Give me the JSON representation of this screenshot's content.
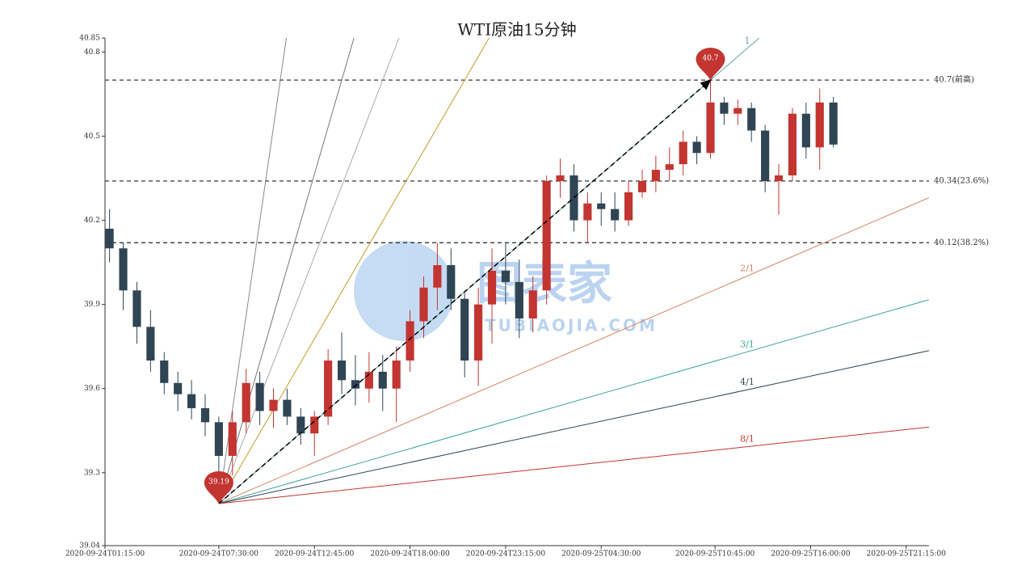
{
  "chart_data": {
    "type": "candlestick",
    "title": "WTI原油15分钟",
    "watermark": {
      "text": "图表家",
      "subtext": "TUBIAOJIA.COM"
    },
    "up_color": "#c23531",
    "down_color": "#2f4554",
    "x": [
      "2020-09-24T01:30:00",
      "2020-09-24T02:15:00",
      "2020-09-24T03:00:00",
      "2020-09-24T03:45:00",
      "2020-09-24T04:30:00",
      "2020-09-24T05:15:00",
      "2020-09-24T06:00:00",
      "2020-09-24T06:45:00",
      "2020-09-24T07:30:00",
      "2020-09-24T08:15:00",
      "2020-09-24T09:00:00",
      "2020-09-24T09:45:00",
      "2020-09-24T10:30:00",
      "2020-09-24T11:15:00",
      "2020-09-24T12:00:00",
      "2020-09-24T12:45:00",
      "2020-09-24T13:30:00",
      "2020-09-24T14:15:00",
      "2020-09-24T15:00:00",
      "2020-09-24T15:45:00",
      "2020-09-24T16:30:00",
      "2020-09-24T17:15:00",
      "2020-09-24T18:00:00",
      "2020-09-24T18:45:00",
      "2020-09-24T19:30:00",
      "2020-09-24T20:15:00",
      "2020-09-24T21:00:00",
      "2020-09-24T21:45:00",
      "2020-09-24T22:30:00",
      "2020-09-24T23:15:00",
      "2020-09-25T00:00:00",
      "2020-09-25T00:45:00",
      "2020-09-25T01:30:00",
      "2020-09-25T02:15:00",
      "2020-09-25T03:00:00",
      "2020-09-25T03:45:00",
      "2020-09-25T04:30:00",
      "2020-09-25T05:15:00",
      "2020-09-25T06:00:00",
      "2020-09-25T06:45:00",
      "2020-09-25T07:30:00",
      "2020-09-25T08:15:00",
      "2020-09-25T09:00:00",
      "2020-09-25T09:45:00",
      "2020-09-25T10:30:00",
      "2020-09-25T11:15:00",
      "2020-09-25T12:00:00",
      "2020-09-25T12:45:00",
      "2020-09-25T13:30:00",
      "2020-09-25T14:15:00",
      "2020-09-25T15:00:00",
      "2020-09-25T15:45:00",
      "2020-09-25T16:30:00",
      "2020-09-25T17:15:00"
    ],
    "open": [
      40.17,
      40.1,
      39.95,
      39.82,
      39.7,
      39.62,
      39.58,
      39.53,
      39.48,
      39.36,
      39.48,
      39.62,
      39.52,
      39.56,
      39.5,
      39.44,
      39.5,
      39.7,
      39.63,
      39.6,
      39.66,
      39.6,
      39.7,
      39.84,
      39.96,
      40.04,
      39.92,
      39.7,
      39.9,
      40.02,
      39.98,
      39.85,
      39.95,
      40.34,
      40.36,
      40.2,
      40.26,
      40.24,
      40.2,
      40.3,
      40.34,
      40.38,
      40.4,
      40.48,
      40.44,
      40.62,
      40.58,
      40.6,
      40.52,
      40.34,
      40.36,
      40.58,
      40.46,
      40.62
    ],
    "high": [
      40.24,
      40.12,
      39.98,
      39.88,
      39.73,
      39.66,
      39.63,
      39.58,
      39.5,
      39.52,
      39.67,
      39.66,
      39.6,
      39.6,
      39.53,
      39.52,
      39.74,
      39.8,
      39.72,
      39.73,
      39.72,
      39.75,
      39.88,
      40.0,
      40.12,
      40.1,
      39.94,
      39.96,
      40.1,
      40.12,
      40.06,
      40.0,
      40.36,
      40.42,
      40.4,
      40.3,
      40.3,
      40.3,
      40.34,
      40.38,
      40.43,
      40.46,
      40.52,
      40.5,
      40.7,
      40.64,
      40.63,
      40.62,
      40.54,
      40.4,
      40.6,
      40.62,
      40.67,
      40.64
    ],
    "low": [
      40.05,
      39.88,
      39.76,
      39.66,
      39.58,
      39.52,
      39.49,
      39.43,
      39.19,
      39.29,
      39.44,
      39.47,
      39.46,
      39.47,
      39.4,
      39.36,
      39.47,
      39.58,
      39.54,
      39.55,
      39.52,
      39.48,
      39.66,
      39.78,
      39.88,
      39.88,
      39.64,
      39.61,
      39.76,
      39.9,
      39.78,
      39.8,
      39.9,
      40.28,
      40.16,
      40.12,
      40.18,
      40.16,
      40.18,
      40.28,
      40.3,
      40.34,
      40.36,
      40.4,
      40.42,
      40.54,
      40.54,
      40.48,
      40.3,
      40.22,
      40.34,
      40.42,
      40.38,
      40.46
    ],
    "close": [
      40.1,
      39.95,
      39.82,
      39.7,
      39.62,
      39.58,
      39.53,
      39.48,
      39.36,
      39.48,
      39.62,
      39.52,
      39.56,
      39.5,
      39.44,
      39.5,
      39.7,
      39.63,
      39.6,
      39.66,
      39.6,
      39.7,
      39.84,
      39.96,
      40.04,
      39.92,
      39.7,
      39.9,
      40.02,
      39.98,
      39.85,
      39.95,
      40.34,
      40.36,
      40.2,
      40.26,
      40.24,
      40.2,
      40.3,
      40.34,
      40.38,
      40.4,
      40.48,
      40.44,
      40.62,
      40.58,
      40.6,
      40.52,
      40.34,
      40.36,
      40.58,
      40.46,
      40.62,
      40.47
    ],
    "xlim": [
      "2020-09-24T01:15:00",
      "2020-09-25T22:30:00"
    ],
    "xticks": [
      "2020-09-24T01:15:00",
      "2020-09-24T07:30:00",
      "2020-09-24T12:45:00",
      "2020-09-24T18:00:00",
      "2020-09-24T23:15:00",
      "2020-09-25T04:30:00",
      "2020-09-25T10:45:00",
      "2020-09-25T16:00:00",
      "2020-09-25T21:15:00"
    ],
    "ylim": [
      39.04,
      40.85
    ],
    "yticks": [
      39.04,
      39.3,
      39.6,
      39.9,
      40.2,
      40.5,
      40.8,
      40.85
    ],
    "hlines": [
      {
        "value": 40.7,
        "label": "40.7(前高)"
      },
      {
        "value": 40.34,
        "label": "40.34(23.6%)"
      },
      {
        "value": 40.12,
        "label": "40.12(38.2%)"
      }
    ],
    "markers": [
      {
        "x": "2020-09-24T07:30:00",
        "value": 39.19
      },
      {
        "x": "2020-09-25T10:30:00",
        "value": 40.7
      }
    ],
    "gann": {
      "origin": {
        "x": "2020-09-24T07:30:00",
        "value": 39.19
      },
      "through": {
        "x": "2020-09-25T10:30:00",
        "value": 40.7
      },
      "lines": [
        {
          "price": 1,
          "time": 1,
          "label": "1",
          "color": "#61a0a8"
        },
        {
          "price": 1,
          "time": 2,
          "label": "2/1",
          "color": "#d48265"
        },
        {
          "price": 1,
          "time": 3,
          "label": "3/1",
          "color": "#3aa39a"
        },
        {
          "price": 1,
          "time": 4,
          "label": "4/1",
          "color": "#2f4554"
        },
        {
          "price": 1,
          "time": 8,
          "label": "8/1",
          "color": "#c23531"
        },
        {
          "price": 2,
          "time": 1,
          "color": "#c79a2d"
        },
        {
          "price": 3,
          "time": 1,
          "color": "#aaaaaa"
        },
        {
          "price": 4,
          "time": 1,
          "color": "#777777"
        },
        {
          "price": 8,
          "time": 1,
          "color": "#888888"
        }
      ]
    }
  }
}
